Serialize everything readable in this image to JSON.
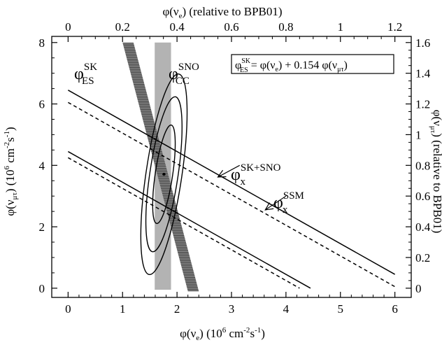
{
  "chart_data": {
    "type": "line",
    "xlabel": "φ(ν",
    "xlabel_sub": "e",
    "xlabel_units": ") (10",
    "xlabel_units_sup": "6",
    "xlabel_units_rest": " cm",
    "xlabel_units_sup2": "-2",
    "xlabel_units_rest2": "s",
    "xlabel_units_sup3": "-1",
    "xlabel_units_end": ")",
    "ylabel": "φ(ν",
    "ylabel_sub": "μτ",
    "ylabel_units": ") (10",
    "ylabel_units_sup": "6",
    "ylabel_units_rest": " cm",
    "ylabel_units_sup2": "-2",
    "ylabel_units_rest2": "s",
    "ylabel_units_sup3": "-1",
    "ylabel_units_end": ")",
    "top_xlabel": "φ(ν",
    "top_xlabel_sub": "e",
    "top_xlabel_rest": ") (relative to BPB01)",
    "right_ylabel": "φ(ν",
    "right_ylabel_sub": "μτ",
    "right_ylabel_rest": ") (relative to BPB01)",
    "xlim": [
      -0.3,
      6.3
    ],
    "ylim": [
      -0.3,
      8.2
    ],
    "top_xlim_rel": [
      0,
      1.2
    ],
    "right_ylim_rel": [
      0,
      1.6
    ],
    "x_ticks": [
      "0",
      "1",
      "2",
      "3",
      "4",
      "5",
      "6"
    ],
    "y_ticks": [
      "0",
      "2",
      "4",
      "6",
      "8"
    ],
    "top_ticks": [
      "0",
      "0.2",
      "0.4",
      "0.6",
      "0.8",
      "1",
      "1.2"
    ],
    "right_ticks": [
      "0",
      "0.2",
      "0.4",
      "0.6",
      "0.8",
      "1",
      "1.2",
      "1.4",
      "1.6"
    ],
    "x_ticks_val": [
      0,
      1,
      2,
      3,
      4,
      5,
      6
    ],
    "y_ticks_val": [
      0,
      2,
      4,
      6,
      8
    ],
    "top_ticks_val": [
      0,
      0.2,
      0.4,
      0.6,
      0.8,
      1.0,
      1.2
    ],
    "right_ticks_val": [
      0,
      0.2,
      0.4,
      0.6,
      0.8,
      1.0,
      1.2,
      1.4,
      1.6
    ],
    "equation": {
      "lhs": "φ",
      "lhs_sup": "SK",
      "lhs_sub": "ES",
      "rhs": " = φ(ν",
      "rhs_sub": "e",
      "rhs_mid": ") + 0.154 φ(ν",
      "rhs_sub2": "μτ",
      "rhs_end": ")"
    },
    "labels": {
      "es": {
        "base": "φ",
        "sup": "SK",
        "sub": "ES"
      },
      "cc": {
        "base": "φ",
        "sup": "SNO",
        "sub": "CC"
      },
      "sksno": {
        "base": "φ",
        "sup": "SK+SNO",
        "sub": "x"
      },
      "ssm": {
        "base": "φ",
        "sup": "SSM",
        "sub": "x"
      }
    },
    "bands": {
      "sno_cc": {
        "x_min": 1.59,
        "x_max": 1.89,
        "color": "#b3b3b3"
      },
      "sk_es": {
        "top_x": [
          1.0,
          1.2
        ],
        "bottom_x": [
          2.2,
          2.4
        ],
        "y_top": 8.0,
        "y_bottom": -0.1,
        "color": "#5a5a5a"
      }
    },
    "series": [
      {
        "style": "solid",
        "x": [
          0,
          6.0
        ],
        "y": [
          6.45,
          0.45
        ]
      },
      {
        "style": "solid",
        "x": [
          0,
          4.45
        ],
        "y": [
          4.45,
          0.0
        ]
      },
      {
        "style": "dashed",
        "x": [
          0,
          6.0
        ],
        "y": [
          6.05,
          0.05
        ]
      },
      {
        "style": "dashed",
        "x": [
          0,
          4.25
        ],
        "y": [
          4.25,
          0.0
        ]
      }
    ],
    "best_fit": {
      "x": 1.76,
      "y": 3.71
    },
    "contours": [
      {
        "cx": 1.76,
        "cy": 3.71,
        "rx": 0.16,
        "ry": 1.62,
        "angle_deg": 8.4
      },
      {
        "cx": 1.76,
        "cy": 3.71,
        "rx": 0.26,
        "ry": 2.55,
        "angle_deg": 8.4
      },
      {
        "cx": 1.76,
        "cy": 3.71,
        "rx": 0.33,
        "ry": 3.3,
        "angle_deg": 8.4
      }
    ],
    "arrows": [
      {
        "from": [
          3.15,
          4.0
        ],
        "to": [
          2.75,
          3.62
        ]
      },
      {
        "from": [
          4.0,
          3.0
        ],
        "to": [
          3.62,
          2.55
        ]
      }
    ]
  }
}
